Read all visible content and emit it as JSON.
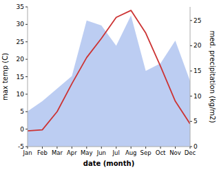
{
  "chart_data": {
    "type": "line",
    "xlabel": "date (month)",
    "ylabel": "max temp (C)",
    "y2label": "med. precipitation (kg/m2)",
    "categories": [
      "Jan",
      "Feb",
      "Mar",
      "Apr",
      "May",
      "Jun",
      "Jul",
      "Aug",
      "Sep",
      "Oct",
      "Nov",
      "Dec"
    ],
    "series": [
      {
        "type": "area",
        "axis": "y2",
        "color": "#b0c4f0",
        "values": [
          7.0,
          9.0,
          11.5,
          14.0,
          25.0,
          24.0,
          20.0,
          26.0,
          15.0,
          16.5,
          21.0,
          13.0
        ]
      },
      {
        "type": "line",
        "color": "#cc3333",
        "values": [
          -0.5,
          -0.2,
          5.0,
          13.0,
          20.5,
          26.0,
          32.0,
          34.0,
          27.5,
          18.0,
          8.0,
          1.5
        ]
      }
    ],
    "ylim": [
      -5,
      35
    ],
    "yticks": [
      -5,
      0,
      5,
      10,
      15,
      20,
      25,
      30,
      35
    ],
    "y2lim": [
      0,
      27.7
    ],
    "y2ticks": [
      0,
      5,
      10,
      15,
      20,
      25
    ],
    "grid": false
  }
}
